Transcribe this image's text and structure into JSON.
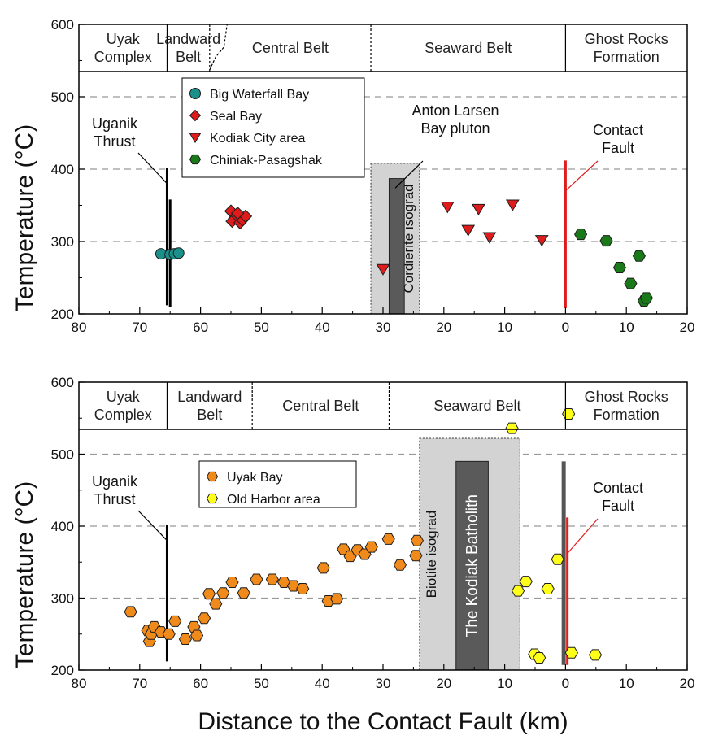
{
  "chart_data": [
    {
      "type": "scatter",
      "xlabel": "",
      "ylabel": "Temperature (°C)",
      "xlim": [
        80,
        -20
      ],
      "ylim": [
        200,
        600
      ],
      "x_ticks": [
        "80",
        "70",
        "60",
        "50",
        "40",
        "30",
        "20",
        "10",
        "0",
        "10",
        "20"
      ],
      "y_ticks": [
        "200",
        "300",
        "400",
        "500",
        "600"
      ],
      "grid": "dashed horizontal lines at 300, 400, 500",
      "belts": [
        {
          "lines": [
            "Uyak",
            "Complex"
          ],
          "from": 80,
          "to": 65.5
        },
        {
          "lines": [
            "Landward",
            "Belt"
          ],
          "from": 65.5,
          "to": 58.5
        },
        {
          "lines": [
            "Central Belt"
          ],
          "from": 58.5,
          "to": 32
        },
        {
          "lines": [
            "Seaward Belt"
          ],
          "from": 32,
          "to": 0
        },
        {
          "lines": [
            "Ghost Rocks",
            "Formation"
          ],
          "from": 0,
          "to": -20
        }
      ],
      "legend": {
        "placement": "top-left"
      },
      "series": [
        {
          "name": "Big Waterfall Bay",
          "marker": "circle",
          "color": "#1b8f8a",
          "points": [
            [
              66.5,
              283
            ],
            [
              65.0,
              282
            ],
            [
              64.3,
              283
            ],
            [
              63.6,
              284
            ]
          ]
        },
        {
          "name": "Seal Bay",
          "marker": "diamond",
          "color": "#e01b1b",
          "points": [
            [
              55.0,
              342
            ],
            [
              54.4,
              332
            ],
            [
              54.8,
              328
            ],
            [
              54.0,
              336
            ],
            [
              53.5,
              326
            ],
            [
              53.1,
              330
            ],
            [
              52.6,
              335
            ],
            [
              53.9,
              339
            ]
          ]
        },
        {
          "name": "Kodiak City area",
          "marker": "triangle-down",
          "color": "#e01b1b",
          "points": [
            [
              30.0,
              262
            ],
            [
              19.4,
              348
            ],
            [
              16.0,
              316
            ],
            [
              14.3,
              345
            ],
            [
              12.5,
              306
            ],
            [
              8.7,
              351
            ],
            [
              3.9,
              302
            ]
          ]
        },
        {
          "name": "Chiniak-Pasagshak",
          "marker": "hexagon",
          "color": "#1a7a1a",
          "points": [
            [
              -2.5,
              310
            ],
            [
              -6.7,
              301
            ],
            [
              -8.9,
              264
            ],
            [
              -10.7,
              242
            ],
            [
              -12.1,
              280
            ],
            [
              -12.9,
              218
            ],
            [
              -13.3,
              222
            ]
          ]
        }
      ],
      "vertical_bars": [
        {
          "label": "Cordierite isograd",
          "from": 32,
          "to": 24,
          "ymax": 408,
          "fill": "#d3d3d3",
          "border": "dotted"
        },
        {
          "label": "",
          "from": 29,
          "to": 26.5,
          "ymax": 387,
          "fill": "#5a5a5a"
        }
      ],
      "lines": [
        {
          "x": 65.5,
          "ymin": 212,
          "ymax": 402,
          "color": "#000000"
        },
        {
          "x": 65.0,
          "ymin": 210,
          "ymax": 358,
          "color": "#000000"
        },
        {
          "x": 0,
          "ymin": 208,
          "ymax": 412,
          "color": "#e01b1b"
        }
      ],
      "annotations": [
        {
          "lines": [
            "Uganik",
            "Thrust"
          ],
          "target_x": 65.5,
          "target_y": 380
        },
        {
          "lines": [
            "Anton Larsen",
            "Bay pluton"
          ],
          "target_x": 28,
          "target_y": 385
        },
        {
          "lines": [
            "Contact",
            "Fault"
          ],
          "target_x": 0,
          "target_y": 370
        }
      ]
    },
    {
      "type": "scatter",
      "xlabel": "Distance to the Contact Fault (km)",
      "ylabel": "Temperature (°C)",
      "xlim": [
        80,
        -20
      ],
      "ylim": [
        200,
        600
      ],
      "x_ticks": [
        "80",
        "70",
        "60",
        "50",
        "40",
        "30",
        "20",
        "10",
        "0",
        "10",
        "20"
      ],
      "y_ticks": [
        "200",
        "300",
        "400",
        "500",
        "600"
      ],
      "grid": "dashed horizontal lines at 300, 400, 500",
      "belts": [
        {
          "lines": [
            "Uyak",
            "Complex"
          ],
          "from": 80,
          "to": 65.5
        },
        {
          "lines": [
            "Landward",
            "Belt"
          ],
          "from": 65.5,
          "to": 51.5
        },
        {
          "lines": [
            "Central Belt"
          ],
          "from": 51.5,
          "to": 29
        },
        {
          "lines": [
            "Seaward Belt"
          ],
          "from": 29,
          "to": 0
        },
        {
          "lines": [
            "Ghost Rocks",
            "Formation"
          ],
          "from": 0,
          "to": -20
        }
      ],
      "legend": {
        "placement": "top-left"
      },
      "series": [
        {
          "name": "Uyak Bay",
          "marker": "hexagon",
          "color": "#f08a1a",
          "points": [
            [
              71.5,
              281
            ],
            [
              68.7,
              255
            ],
            [
              68.4,
              240
            ],
            [
              68.1,
              250
            ],
            [
              67.6,
              260
            ],
            [
              66.5,
              253
            ],
            [
              65.2,
              250
            ],
            [
              64.2,
              268
            ],
            [
              62.5,
              243
            ],
            [
              61.1,
              260
            ],
            [
              60.6,
              248
            ],
            [
              59.4,
              272
            ],
            [
              58.6,
              306
            ],
            [
              57.5,
              292
            ],
            [
              56.3,
              307
            ],
            [
              54.8,
              322
            ],
            [
              52.9,
              307
            ],
            [
              50.8,
              326
            ],
            [
              48.2,
              326
            ],
            [
              46.3,
              322
            ],
            [
              44.7,
              317
            ],
            [
              43.2,
              313
            ],
            [
              39.8,
              342
            ],
            [
              39.0,
              296
            ],
            [
              37.6,
              299
            ],
            [
              36.5,
              368
            ],
            [
              35.4,
              358
            ],
            [
              34.2,
              367
            ],
            [
              33.0,
              361
            ],
            [
              31.9,
              371
            ],
            [
              29.1,
              382
            ],
            [
              27.2,
              346
            ],
            [
              24.6,
              359
            ],
            [
              24.4,
              380
            ]
          ]
        },
        {
          "name": "Old Harbor area",
          "marker": "hexagon",
          "color": "#ffff1a",
          "points": [
            [
              8.8,
              536
            ],
            [
              -0.5,
              556
            ],
            [
              7.8,
              310
            ],
            [
              6.5,
              323
            ],
            [
              1.3,
              354
            ],
            [
              2.9,
              313
            ],
            [
              5.1,
              222
            ],
            [
              4.3,
              217
            ],
            [
              -1.0,
              224
            ],
            [
              -4.9,
              221
            ]
          ]
        }
      ],
      "vertical_bars": [
        {
          "label": "Biotite isograd",
          "from": 24,
          "to": 7.5,
          "ymax": 522,
          "fill": "#d3d3d3",
          "border": "dotted"
        },
        {
          "label": "The Kodiak Batholith",
          "from": 18,
          "to": 12.7,
          "ymax": 490,
          "fill": "#5a5a5a"
        }
      ],
      "lines": [
        {
          "x": 65.5,
          "ymin": 212,
          "ymax": 402,
          "color": "#000000"
        },
        {
          "x": 0.3,
          "ymin": 207,
          "ymax": 490,
          "color": "#555555",
          "width": 5
        },
        {
          "x": -0.3,
          "ymin": 207,
          "ymax": 412,
          "color": "#e01b1b"
        }
      ],
      "annotations": [
        {
          "lines": [
            "Uganik",
            "Thrust"
          ],
          "target_x": 65.5,
          "target_y": 380
        },
        {
          "lines": [
            "Contact",
            "Fault"
          ],
          "target_x": -0.3,
          "target_y": 362
        }
      ]
    }
  ]
}
